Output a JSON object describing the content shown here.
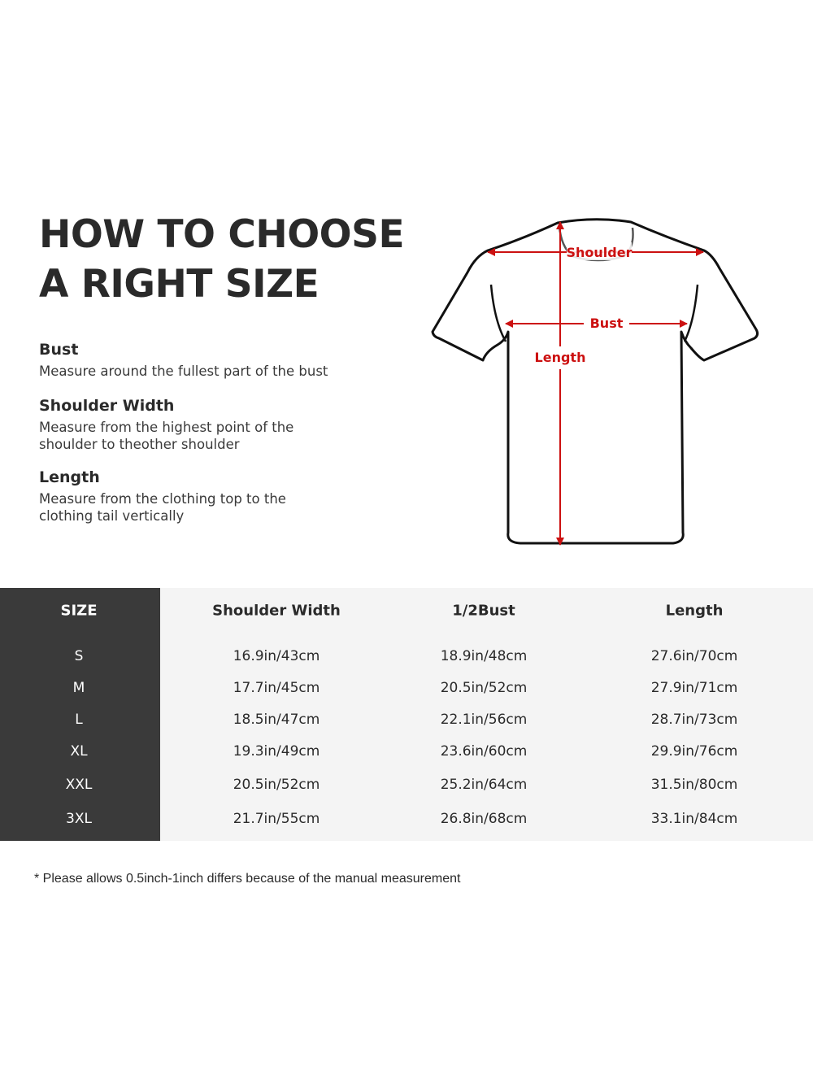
{
  "title": {
    "line1": "HOW TO CHOOSE",
    "line2": "A RIGHT SIZE"
  },
  "guides": [
    {
      "heading": "Bust",
      "text": "Measure around the fullest part of the bust"
    },
    {
      "heading": "Shoulder Width",
      "text_line1": "Measure from the highest point of the",
      "text_line2": "shoulder to theother shoulder"
    },
    {
      "heading": "Length",
      "text_line1": "Measure from the clothing top to the",
      "text_line2": "clothing tail vertically"
    }
  ],
  "diagram": {
    "shoulder_label": "Shoulder",
    "bust_label": "Bust",
    "length_label": "Length",
    "accent_color": "#cc1111"
  },
  "table": {
    "headers": [
      "SIZE",
      "Shoulder Width",
      "1/2Bust",
      "Length"
    ],
    "rows": [
      [
        "S",
        "16.9in/43cm",
        "18.9in/48cm",
        "27.6in/70cm"
      ],
      [
        "M",
        "17.7in/45cm",
        "20.5in/52cm",
        "27.9in/71cm"
      ],
      [
        "L",
        "18.5in/47cm",
        "22.1in/56cm",
        "28.7in/73cm"
      ],
      [
        "XL",
        "19.3in/49cm",
        "23.6in/60cm",
        "29.9in/76cm"
      ],
      [
        "XXL",
        "20.5in/52cm",
        "25.2in/64cm",
        "31.5in/80cm"
      ],
      [
        "3XL",
        "21.7in/55cm",
        "26.8in/68cm",
        "33.1in/84cm"
      ]
    ]
  },
  "note": "* Please allows 0.5inch-1inch differs because of the  manual measurement"
}
